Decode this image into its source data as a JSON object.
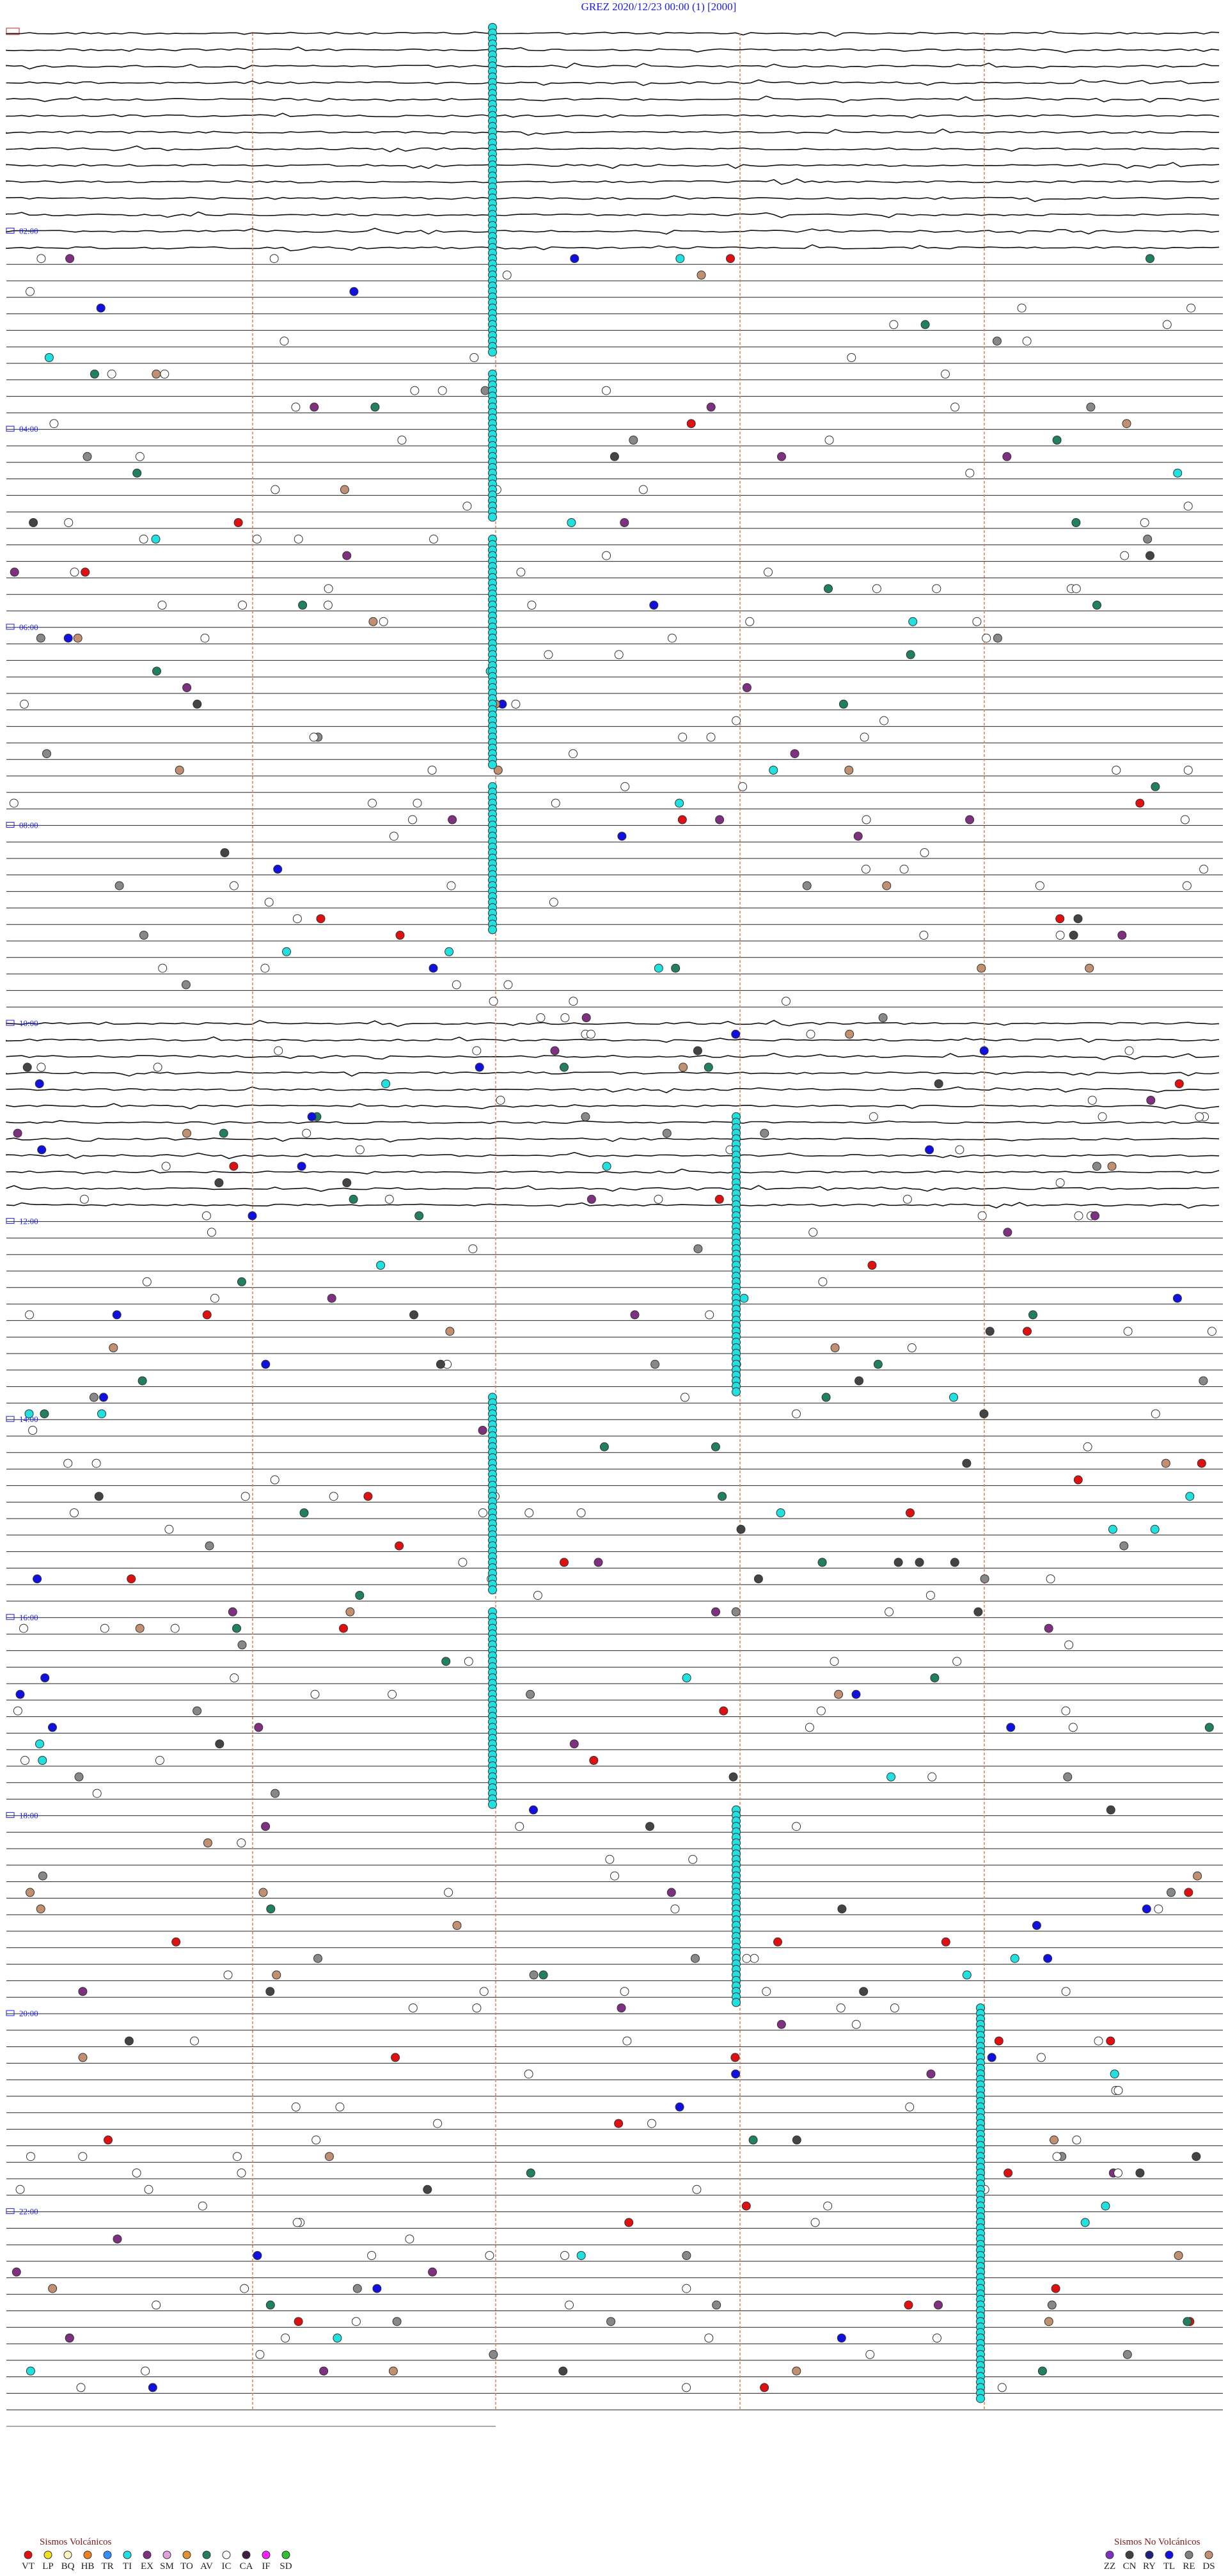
{
  "header": {
    "title": "GREZ     2020/12/23 00:00     (1)     [2000]"
  },
  "hours": [
    "02:00",
    "04:00",
    "06:00",
    "08:00",
    "10:00",
    "12:00",
    "14:00",
    "16:00",
    "18:00",
    "20:00",
    "22:00"
  ],
  "legend_volcanic": {
    "title": "Sismos Volcánicos",
    "items": [
      {
        "code": "VT",
        "color": "#e01010"
      },
      {
        "code": "LP",
        "color": "#f0e020"
      },
      {
        "code": "BQ",
        "color": "#fff8c0"
      },
      {
        "code": "HB",
        "color": "#f08020"
      },
      {
        "code": "TR",
        "color": "#3090ff"
      },
      {
        "code": "TI",
        "color": "#20e0e0"
      },
      {
        "code": "EX",
        "color": "#803080"
      },
      {
        "code": "SM",
        "color": "#e0a0e0"
      },
      {
        "code": "TO",
        "color": "#e09030"
      },
      {
        "code": "AV",
        "color": "#208060"
      },
      {
        "code": "IC",
        "color": "#ffffff"
      },
      {
        "code": "CA",
        "color": "#402040"
      },
      {
        "code": "IF",
        "color": "#ff20ff"
      },
      {
        "code": "SD",
        "color": "#30c030"
      }
    ]
  },
  "legend_non_volcanic": {
    "title": "Sismos No Volcánicos",
    "items": [
      {
        "code": "ZZ",
        "color": "#8030c0"
      },
      {
        "code": "CN",
        "color": "#404040"
      },
      {
        "code": "RY",
        "color": "#202080"
      },
      {
        "code": "TL",
        "color": "#1010e0"
      },
      {
        "code": "RE",
        "color": "#808080"
      },
      {
        "code": "DS",
        "color": "#c09070"
      }
    ]
  }
}
